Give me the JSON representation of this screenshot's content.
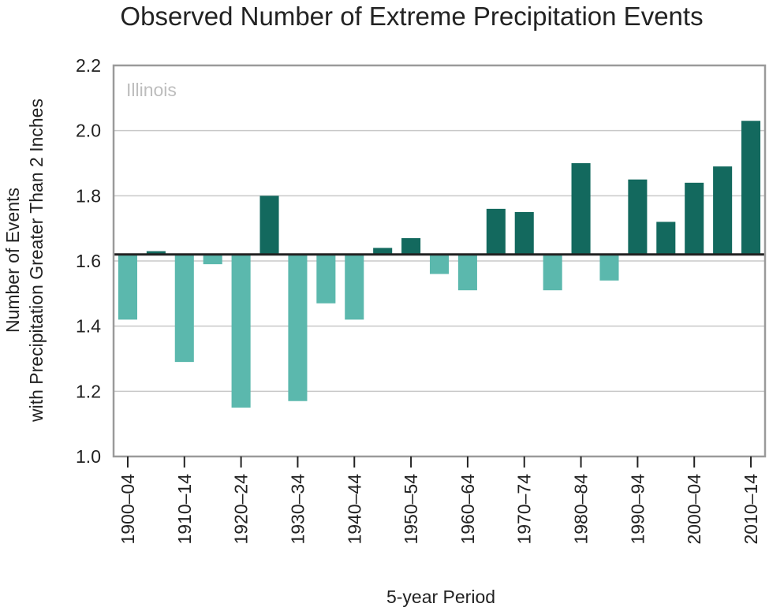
{
  "chart_data": {
    "type": "bar",
    "title": "Observed Number of Extreme Precipitation Events",
    "annotation": "Illinois",
    "xlabel": "5-year Period",
    "ylabel_line1": "Number of Events",
    "ylabel_line2": "with Precipitation Greater Than 2 Inches",
    "ylim": [
      1.0,
      2.2
    ],
    "yticks": [
      "1.0",
      "1.2",
      "1.4",
      "1.6",
      "1.8",
      "2.0",
      "2.2"
    ],
    "yticks_values": [
      1.0,
      1.2,
      1.4,
      1.6,
      1.8,
      2.0,
      2.2
    ],
    "baseline": 1.62,
    "grid": true,
    "categories": [
      "1900–04",
      "1905–09",
      "1910–14",
      "1915–19",
      "1920–24",
      "1925–29",
      "1930–34",
      "1935–39",
      "1940–44",
      "1945–49",
      "1950–54",
      "1955–59",
      "1960–64",
      "1965–69",
      "1970–74",
      "1975–79",
      "1980–84",
      "1985–89",
      "1990–94",
      "1995–99",
      "2000–04",
      "2005–09",
      "2010–14"
    ],
    "tick_labels": [
      "1900–04",
      "1910–14",
      "1920–24",
      "1930–34",
      "1940–44",
      "1950–54",
      "1960–64",
      "1970–74",
      "1980–84",
      "1990–94",
      "2000–04",
      "2010–14"
    ],
    "values": [
      1.42,
      1.63,
      1.29,
      1.59,
      1.15,
      1.8,
      1.17,
      1.47,
      1.42,
      1.64,
      1.67,
      1.56,
      1.51,
      1.76,
      1.75,
      1.51,
      1.9,
      1.54,
      1.85,
      1.72,
      1.84,
      1.89,
      2.03
    ],
    "colors": {
      "above": "#13695e",
      "below": "#5bb8ad",
      "baseline": "#222222",
      "grid": "#c8c8c8",
      "frame": "#9a9a9a"
    }
  }
}
